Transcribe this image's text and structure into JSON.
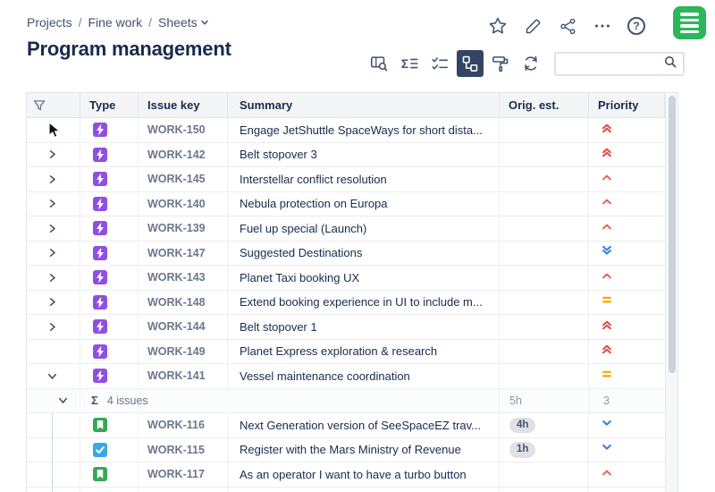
{
  "glyphs": {
    "sigma": "Σ",
    "help": "?"
  },
  "colors": {
    "toolbar_selected_bg": "#344563",
    "logo_green": "#2bb659",
    "type": {
      "epic": "#904ee2",
      "story": "#36a852",
      "task": "#3aa7e8"
    },
    "priority": {
      "highest": "#e5483d",
      "high": "#ef5c48",
      "medium": "#ffab00",
      "low": "#2e7de1",
      "lowest": "#2e7de1"
    }
  },
  "breadcrumb": {
    "separator": "/",
    "items": [
      {
        "label": "Projects"
      },
      {
        "label": "Fine work"
      },
      {
        "label": "Sheets",
        "has_dropdown": true
      }
    ]
  },
  "page_title": "Program management",
  "top_bar": {
    "icons": [
      "star",
      "edit",
      "share",
      "more",
      "help"
    ],
    "app_logo": "green-sheets-logo"
  },
  "toolbar": {
    "buttons": [
      {
        "id": "find-view",
        "selected": false
      },
      {
        "id": "sum-rows",
        "selected": false
      },
      {
        "id": "checklist",
        "selected": false
      },
      {
        "id": "hierarchy",
        "selected": true
      },
      {
        "id": "paint-format",
        "selected": false
      },
      {
        "id": "sync",
        "selected": false
      }
    ],
    "search": {
      "value": "",
      "placeholder": ""
    }
  },
  "table": {
    "columns": [
      {
        "id": "expander",
        "label": ""
      },
      {
        "id": "type",
        "label": "Type"
      },
      {
        "id": "key",
        "label": "Issue key"
      },
      {
        "id": "summary",
        "label": "Summary"
      },
      {
        "id": "est",
        "label": "Orig. est."
      },
      {
        "id": "priority",
        "label": "Priority"
      }
    ],
    "rows": [
      {
        "kind": "issue",
        "level": 0,
        "expand": "collapsed",
        "type": "epic",
        "key": "WORK-150",
        "summary": "Engage JetShuttle SpaceWays for short dista...",
        "est": "",
        "est_pill": false,
        "priority": "highest"
      },
      {
        "kind": "issue",
        "level": 0,
        "expand": "collapsed",
        "type": "epic",
        "key": "WORK-142",
        "summary": "Belt stopover 3",
        "est": "",
        "est_pill": false,
        "priority": "highest"
      },
      {
        "kind": "issue",
        "level": 0,
        "expand": "collapsed",
        "type": "epic",
        "key": "WORK-145",
        "summary": "Interstellar conflict resolution",
        "est": "",
        "est_pill": false,
        "priority": "high"
      },
      {
        "kind": "issue",
        "level": 0,
        "expand": "collapsed",
        "type": "epic",
        "key": "WORK-140",
        "summary": "Nebula protection on Europa",
        "est": "",
        "est_pill": false,
        "priority": "high"
      },
      {
        "kind": "issue",
        "level": 0,
        "expand": "collapsed",
        "type": "epic",
        "key": "WORK-139",
        "summary": "Fuel up special (Launch)",
        "est": "",
        "est_pill": false,
        "priority": "high"
      },
      {
        "kind": "issue",
        "level": 0,
        "expand": "collapsed",
        "type": "epic",
        "key": "WORK-147",
        "summary": "Suggested Destinations",
        "est": "",
        "est_pill": false,
        "priority": "lowest"
      },
      {
        "kind": "issue",
        "level": 0,
        "expand": "collapsed",
        "type": "epic",
        "key": "WORK-143",
        "summary": "Planet Taxi booking UX",
        "est": "",
        "est_pill": false,
        "priority": "high"
      },
      {
        "kind": "issue",
        "level": 0,
        "expand": "collapsed",
        "type": "epic",
        "key": "WORK-148",
        "summary": "Extend booking experience in UI to include m...",
        "est": "",
        "est_pill": false,
        "priority": "medium"
      },
      {
        "kind": "issue",
        "level": 0,
        "expand": "collapsed",
        "type": "epic",
        "key": "WORK-144",
        "summary": "Belt stopover 1",
        "est": "",
        "est_pill": false,
        "priority": "highest"
      },
      {
        "kind": "issue",
        "level": 0,
        "expand": null,
        "type": "epic",
        "key": "WORK-149",
        "summary": "Planet Express exploration & research",
        "est": "",
        "est_pill": false,
        "priority": "highest"
      },
      {
        "kind": "issue",
        "level": 0,
        "expand": "expanded",
        "type": "epic",
        "key": "WORK-141",
        "summary": "Vessel maintenance coordination",
        "est": "",
        "est_pill": false,
        "priority": "medium"
      },
      {
        "kind": "group",
        "level": 1,
        "expand": "expanded",
        "label": "4 issues",
        "est": "5h",
        "priority_text": "3"
      },
      {
        "kind": "issue",
        "level": 1,
        "expand": null,
        "type": "story",
        "key": "WORK-116",
        "summary": "Next Generation version of SeeSpaceEZ trav...",
        "est": "4h",
        "est_pill": true,
        "priority": "low"
      },
      {
        "kind": "issue",
        "level": 1,
        "expand": null,
        "type": "task",
        "key": "WORK-115",
        "summary": "Register with the Mars Ministry of Revenue",
        "est": "1h",
        "est_pill": true,
        "priority": "low"
      },
      {
        "kind": "issue",
        "level": 1,
        "expand": null,
        "type": "story",
        "key": "WORK-117",
        "summary": "As an operator I want to have a turbo button",
        "est": "",
        "est_pill": false,
        "priority": "high"
      },
      {
        "kind": "issue",
        "level": 1,
        "expand": null,
        "type": "story",
        "key": "",
        "summary": "",
        "est": "",
        "est_pill": false,
        "priority": null
      }
    ]
  }
}
